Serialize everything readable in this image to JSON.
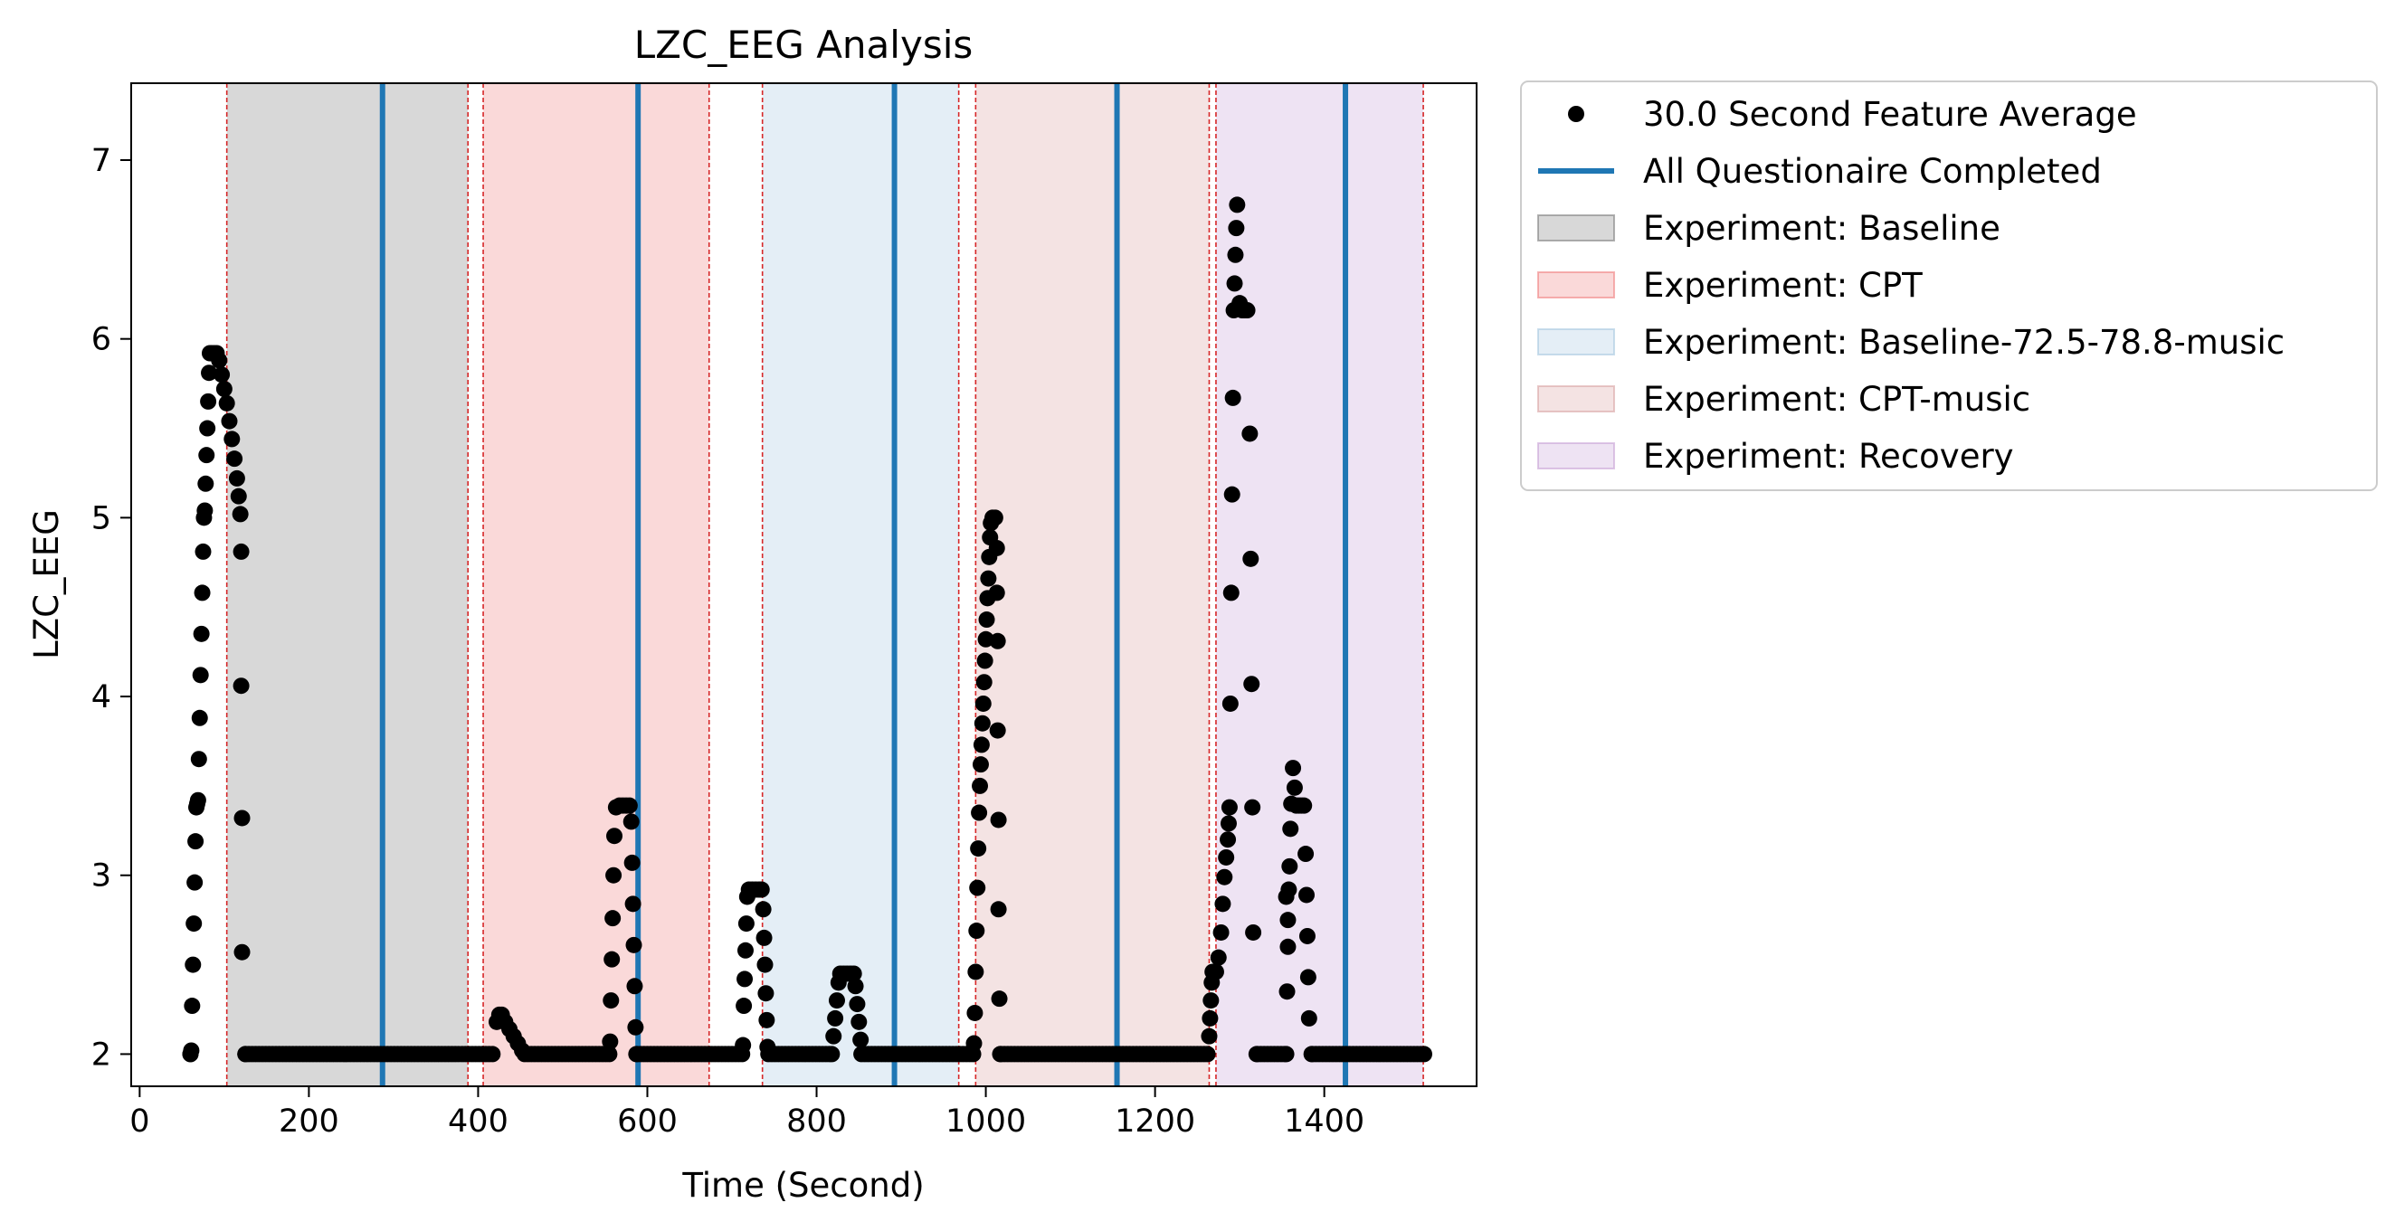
{
  "chart_data": {
    "type": "scatter",
    "title": "LZC_EEG Analysis",
    "xlabel": "Time (Second)",
    "ylabel": "LZC_EEG",
    "xlim": [
      -10,
      1580
    ],
    "ylim": [
      1.82,
      7.43
    ],
    "xticks": [
      0,
      200,
      400,
      600,
      800,
      1000,
      1200,
      1400
    ],
    "yticks": [
      2,
      3,
      4,
      5,
      6,
      7
    ],
    "grid": false,
    "legend_placement": "outside top-right",
    "colors": {
      "points": "#000000",
      "questionnaire_line": "#1f77b4",
      "boundary_line": "#d62728"
    },
    "legend": [
      {
        "key": "points",
        "label": "30.0 Second Feature Average",
        "kind": "marker",
        "color": "#000000"
      },
      {
        "key": "questionnaire",
        "label": "All Questionaire Completed",
        "kind": "line",
        "color": "#1f77b4"
      },
      {
        "key": "baseline",
        "label": "Experiment: Baseline",
        "kind": "patch",
        "color": "#7f7f7f"
      },
      {
        "key": "cpt",
        "label": "Experiment: CPT",
        "kind": "patch",
        "color": "#f08080"
      },
      {
        "key": "baseline_music",
        "label": "Experiment: Baseline-72.5-78.8-music",
        "kind": "patch",
        "color": "#a6c8e0"
      },
      {
        "key": "cpt_music",
        "label": "Experiment: CPT-music",
        "kind": "patch",
        "color": "#d9a3a3"
      },
      {
        "key": "recovery",
        "label": "Experiment: Recovery",
        "kind": "patch",
        "color": "#c8a2d6"
      }
    ],
    "spans": [
      {
        "series": "baseline",
        "x0": 103,
        "x1": 388
      },
      {
        "series": "cpt",
        "x0": 406,
        "x1": 673
      },
      {
        "series": "baseline_music",
        "x0": 736,
        "x1": 968
      },
      {
        "series": "cpt_music",
        "x0": 988,
        "x1": 1264
      },
      {
        "series": "recovery",
        "x0": 1272,
        "x1": 1517
      }
    ],
    "boundaries": [
      103,
      388,
      406,
      673,
      736,
      968,
      988,
      1264,
      1272,
      1517
    ],
    "questionnaire_times": [
      287,
      589,
      892,
      1155,
      1425
    ],
    "points": [
      [
        60,
        2.0
      ],
      [
        61,
        2.02
      ],
      [
        62,
        2.27
      ],
      [
        63,
        2.5
      ],
      [
        64,
        2.73
      ],
      [
        65,
        2.96
      ],
      [
        66,
        3.19
      ],
      [
        67,
        3.38
      ],
      [
        68,
        3.4
      ],
      [
        69,
        3.42
      ],
      [
        70,
        3.65
      ],
      [
        71,
        3.88
      ],
      [
        72,
        4.12
      ],
      [
        73,
        4.35
      ],
      [
        74,
        4.58
      ],
      [
        75,
        4.81
      ],
      [
        76,
        5.0
      ],
      [
        77,
        5.04
      ],
      [
        78,
        5.19
      ],
      [
        79,
        5.35
      ],
      [
        80,
        5.5
      ],
      [
        81,
        5.65
      ],
      [
        82,
        5.81
      ],
      [
        83,
        5.92
      ],
      [
        85,
        5.92
      ],
      [
        88,
        5.92
      ],
      [
        91,
        5.92
      ],
      [
        94,
        5.88
      ],
      [
        97,
        5.8
      ],
      [
        100,
        5.72
      ],
      [
        103,
        5.64
      ],
      [
        106,
        5.54
      ],
      [
        109,
        5.44
      ],
      [
        112,
        5.33
      ],
      [
        115,
        5.22
      ],
      [
        117,
        5.12
      ],
      [
        119,
        5.02
      ],
      [
        120,
        4.81
      ],
      [
        120,
        4.06
      ],
      [
        121,
        3.32
      ],
      [
        121,
        2.57
      ],
      [
        60,
        2.0
      ],
      [
        125,
        2.0
      ],
      [
        422,
        2.18
      ],
      [
        425,
        2.22
      ],
      [
        428,
        2.22
      ],
      [
        432,
        2.18
      ],
      [
        437,
        2.14
      ],
      [
        442,
        2.1
      ],
      [
        447,
        2.06
      ],
      [
        452,
        2.02
      ],
      [
        556,
        2.07
      ],
      [
        557,
        2.3
      ],
      [
        558,
        2.53
      ],
      [
        559,
        2.76
      ],
      [
        560,
        3.0
      ],
      [
        561,
        3.22
      ],
      [
        563,
        3.38
      ],
      [
        567,
        3.39
      ],
      [
        571,
        3.39
      ],
      [
        575,
        3.39
      ],
      [
        579,
        3.39
      ],
      [
        581,
        3.3
      ],
      [
        582,
        3.07
      ],
      [
        583,
        2.84
      ],
      [
        584,
        2.61
      ],
      [
        585,
        2.38
      ],
      [
        586,
        2.15
      ],
      [
        587,
        2.0
      ],
      [
        713,
        2.05
      ],
      [
        714,
        2.27
      ],
      [
        715,
        2.42
      ],
      [
        716,
        2.58
      ],
      [
        717,
        2.73
      ],
      [
        718,
        2.88
      ],
      [
        720,
        2.92
      ],
      [
        724,
        2.92
      ],
      [
        728,
        2.92
      ],
      [
        732,
        2.92
      ],
      [
        735,
        2.92
      ],
      [
        737,
        2.81
      ],
      [
        738,
        2.65
      ],
      [
        739,
        2.5
      ],
      [
        740,
        2.34
      ],
      [
        741,
        2.19
      ],
      [
        742,
        2.04
      ],
      [
        818,
        2.0
      ],
      [
        820,
        2.1
      ],
      [
        822,
        2.2
      ],
      [
        824,
        2.3
      ],
      [
        826,
        2.4
      ],
      [
        828,
        2.45
      ],
      [
        832,
        2.45
      ],
      [
        836,
        2.45
      ],
      [
        840,
        2.45
      ],
      [
        844,
        2.45
      ],
      [
        846,
        2.38
      ],
      [
        848,
        2.28
      ],
      [
        850,
        2.18
      ],
      [
        852,
        2.08
      ],
      [
        986,
        2.06
      ],
      [
        987,
        2.23
      ],
      [
        988,
        2.46
      ],
      [
        989,
        2.69
      ],
      [
        990,
        2.93
      ],
      [
        991,
        3.15
      ],
      [
        992,
        3.35
      ],
      [
        993,
        3.5
      ],
      [
        994,
        3.62
      ],
      [
        995,
        3.73
      ],
      [
        996,
        3.85
      ],
      [
        997,
        3.96
      ],
      [
        998,
        4.08
      ],
      [
        999,
        4.2
      ],
      [
        1000,
        4.32
      ],
      [
        1001,
        4.43
      ],
      [
        1002,
        4.55
      ],
      [
        1003,
        4.66
      ],
      [
        1004,
        4.78
      ],
      [
        1005,
        4.89
      ],
      [
        1006,
        4.97
      ],
      [
        1008,
        5.0
      ],
      [
        1011,
        5.0
      ],
      [
        1013,
        4.83
      ],
      [
        1013,
        4.58
      ],
      [
        1014,
        4.31
      ],
      [
        1014,
        3.81
      ],
      [
        1015,
        3.31
      ],
      [
        1015,
        2.81
      ],
      [
        1016,
        2.31
      ],
      [
        1017,
        2.0
      ],
      [
        1264,
        2.1
      ],
      [
        1265,
        2.2
      ],
      [
        1266,
        2.3
      ],
      [
        1267,
        2.4
      ],
      [
        1268,
        2.46
      ],
      [
        1272,
        2.46
      ],
      [
        1275,
        2.54
      ],
      [
        1278,
        2.68
      ],
      [
        1280,
        2.84
      ],
      [
        1282,
        2.99
      ],
      [
        1284,
        3.1
      ],
      [
        1286,
        3.2
      ],
      [
        1287,
        3.29
      ],
      [
        1288,
        3.38
      ],
      [
        1289,
        3.96
      ],
      [
        1290,
        4.58
      ],
      [
        1291,
        5.13
      ],
      [
        1292,
        5.67
      ],
      [
        1293,
        6.16
      ],
      [
        1294,
        6.31
      ],
      [
        1295,
        6.47
      ],
      [
        1296,
        6.62
      ],
      [
        1297,
        6.75
      ],
      [
        1300,
        6.2
      ],
      [
        1303,
        6.16
      ],
      [
        1306,
        6.16
      ],
      [
        1309,
        6.16
      ],
      [
        1312,
        5.47
      ],
      [
        1313,
        4.77
      ],
      [
        1314,
        4.07
      ],
      [
        1315,
        3.38
      ],
      [
        1316,
        2.68
      ],
      [
        1320,
        2.0
      ],
      [
        1355,
        2.0
      ],
      [
        1356,
        2.35
      ],
      [
        1357,
        2.6
      ],
      [
        1358,
        2.92
      ],
      [
        1359,
        3.05
      ],
      [
        1360,
        3.26
      ],
      [
        1361,
        3.4
      ],
      [
        1363,
        3.6
      ],
      [
        1365,
        3.49
      ],
      [
        1367,
        3.39
      ],
      [
        1370,
        3.39
      ],
      [
        1373,
        3.39
      ],
      [
        1376,
        3.39
      ],
      [
        1378,
        3.12
      ],
      [
        1379,
        2.89
      ],
      [
        1380,
        2.66
      ],
      [
        1381,
        2.43
      ],
      [
        1382,
        2.2
      ],
      [
        1385,
        2.0
      ],
      [
        1355,
        2.88
      ],
      [
        1357,
        2.75
      ]
    ],
    "flat_segments": [
      {
        "x0": 125,
        "x1": 420,
        "y": 2.0,
        "step": 4
      },
      {
        "x0": 455,
        "x1": 555,
        "y": 2.0,
        "step": 4
      },
      {
        "x0": 588,
        "x1": 712,
        "y": 2.0,
        "step": 4
      },
      {
        "x0": 743,
        "x1": 817,
        "y": 2.0,
        "step": 4
      },
      {
        "x0": 853,
        "x1": 985,
        "y": 2.0,
        "step": 4
      },
      {
        "x0": 1018,
        "x1": 1263,
        "y": 2.0,
        "step": 4
      },
      {
        "x0": 1321,
        "x1": 1354,
        "y": 2.0,
        "step": 4
      },
      {
        "x0": 1386,
        "x1": 1520,
        "y": 2.0,
        "step": 4
      }
    ]
  }
}
